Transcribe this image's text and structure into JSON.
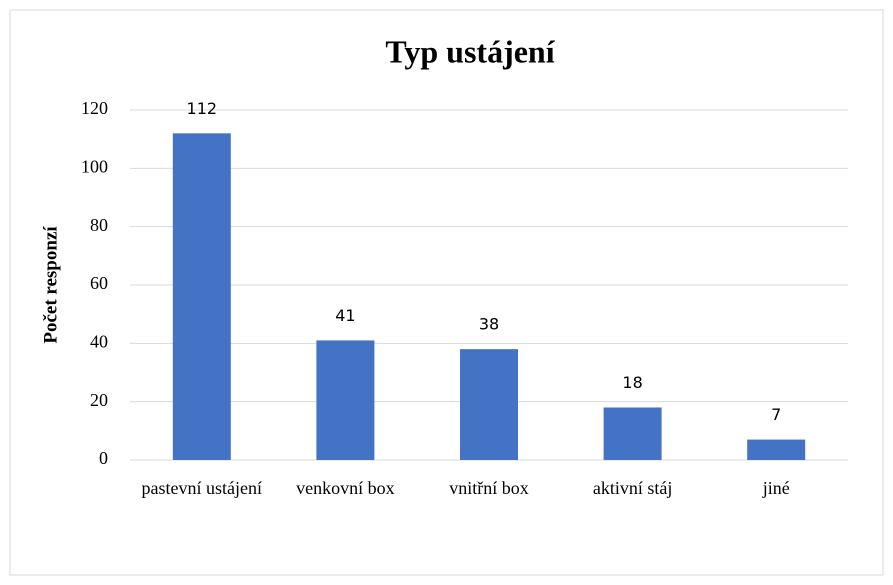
{
  "chart_data": {
    "type": "bar",
    "title": "Typ ustájení",
    "ylabel": "Počet responzí",
    "categories": [
      "pastevní ustájení",
      "venkovní box",
      "vnitřní box",
      "aktivní stáj",
      "jiné"
    ],
    "values": [
      112,
      41,
      38,
      18,
      7
    ],
    "color": "#4472c4",
    "ylim": [
      0,
      120
    ],
    "yticks": [
      0,
      20,
      40,
      60,
      80,
      100,
      120
    ],
    "grid": true
  }
}
